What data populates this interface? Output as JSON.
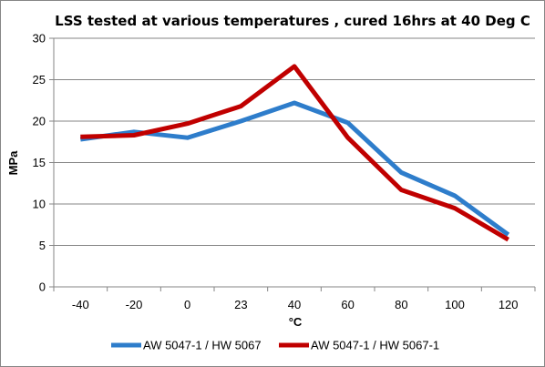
{
  "chart_data": {
    "type": "line",
    "title": "LSS tested at various temperatures , cured 16hrs at 40 Deg C",
    "xlabel": "°C",
    "ylabel": "MPa",
    "categories": [
      "-40",
      "-20",
      "0",
      "23",
      "40",
      "60",
      "80",
      "100",
      "120"
    ],
    "ylim": [
      0,
      30
    ],
    "yticks": [
      "0",
      "5",
      "10",
      "15",
      "20",
      "25",
      "30"
    ],
    "grid": true,
    "legend_position": "bottom",
    "series": [
      {
        "name": "AW 5047-1 / HW 5067",
        "color": "#2e7dcb",
        "values": [
          17.8,
          18.7,
          18.0,
          20.0,
          22.2,
          19.8,
          13.8,
          11.0,
          6.3
        ]
      },
      {
        "name": "AW 5047-1 / HW 5067-1",
        "color": "#c00000",
        "values": [
          18.1,
          18.3,
          19.7,
          21.8,
          26.6,
          18.0,
          11.7,
          9.5,
          5.7
        ]
      }
    ]
  }
}
